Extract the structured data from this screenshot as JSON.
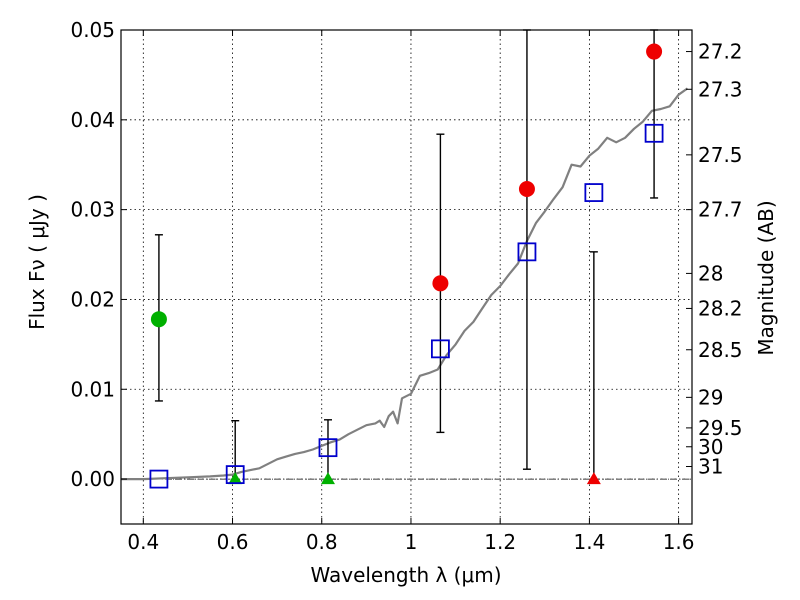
{
  "chart_data": {
    "type": "scatter",
    "xlabel": "Wavelength  λ (μm)",
    "ylabel": "Flux  Fν ( μJy )",
    "y2label": "Magnitude (AB)",
    "xlim": [
      0.35,
      1.63
    ],
    "ylim": [
      -0.005,
      0.05
    ],
    "grid": true,
    "x_ticks": [
      0.4,
      0.6,
      0.8,
      1.0,
      1.2,
      1.4,
      1.6
    ],
    "x_tick_labels": [
      "0.4",
      "0.6",
      "0.8",
      "1",
      "1.2",
      "1.4",
      "1.6"
    ],
    "y_ticks": [
      0.0,
      0.01,
      0.02,
      0.03,
      0.04,
      0.05
    ],
    "y_tick_labels": [
      "0.00",
      "0.01",
      "0.02",
      "0.03",
      "0.04",
      "0.05"
    ],
    "y2_tick_labels": [
      "27.2",
      "27.3",
      "27.5",
      "27.7",
      "28",
      "28.2",
      "28.5",
      "29",
      "29.5",
      "30",
      "31"
    ],
    "y2_tick_flux": [
      0.0476,
      0.0434,
      0.0361,
      0.03,
      0.0229,
      0.019,
      0.0144,
      0.0091,
      0.0057,
      0.0036,
      0.0014
    ],
    "colors": {
      "model": "#808080",
      "green": "#00b000",
      "red": "#ee0000",
      "blue": "#0000cc",
      "errorbar": "#000000"
    },
    "series": [
      {
        "kind": "model_sed",
        "x": [
          0.35,
          0.4,
          0.45,
          0.5,
          0.55,
          0.58,
          0.6,
          0.62,
          0.64,
          0.66,
          0.68,
          0.7,
          0.72,
          0.74,
          0.76,
          0.78,
          0.8,
          0.82,
          0.84,
          0.86,
          0.88,
          0.9,
          0.92,
          0.93,
          0.94,
          0.95,
          0.96,
          0.97,
          0.98,
          1.0,
          1.02,
          1.04,
          1.06,
          1.08,
          1.1,
          1.12,
          1.14,
          1.16,
          1.18,
          1.2,
          1.22,
          1.24,
          1.26,
          1.28,
          1.3,
          1.32,
          1.34,
          1.36,
          1.38,
          1.4,
          1.42,
          1.44,
          1.46,
          1.48,
          1.5,
          1.52,
          1.54,
          1.56,
          1.58,
          1.6,
          1.62
        ],
        "y": [
          0.0,
          0.0,
          0.0001,
          0.0002,
          0.0003,
          0.0004,
          0.0005,
          0.0008,
          0.001,
          0.0012,
          0.0017,
          0.0022,
          0.0025,
          0.0028,
          0.003,
          0.0033,
          0.0037,
          0.0041,
          0.0044,
          0.005,
          0.0055,
          0.006,
          0.0062,
          0.0065,
          0.0058,
          0.007,
          0.0075,
          0.0062,
          0.009,
          0.0095,
          0.0115,
          0.0118,
          0.0122,
          0.0138,
          0.015,
          0.0165,
          0.0175,
          0.019,
          0.0205,
          0.0215,
          0.0228,
          0.024,
          0.0265,
          0.0285,
          0.0298,
          0.0312,
          0.0325,
          0.035,
          0.0348,
          0.036,
          0.0368,
          0.038,
          0.0375,
          0.038,
          0.039,
          0.0398,
          0.041,
          0.0412,
          0.0415,
          0.0428,
          0.0435
        ]
      },
      {
        "kind": "measurement",
        "color": "green",
        "marker": "circle",
        "x": [
          0.435
        ],
        "y": [
          0.0178
        ],
        "yerr_low": [
          0.0087
        ],
        "yerr_high": [
          0.0272
        ]
      },
      {
        "kind": "upper_limit",
        "color": "green",
        "marker": "triangle",
        "x": [
          0.606,
          0.814
        ],
        "y": [
          0.0,
          0.0
        ],
        "yerr_low": [
          0.0,
          0.0
        ],
        "yerr_high": [
          0.0065,
          0.0066
        ]
      },
      {
        "kind": "measurement",
        "color": "red",
        "marker": "circle",
        "x": [
          1.066,
          1.26,
          1.545
        ],
        "y": [
          0.0218,
          0.0323,
          0.0476
        ],
        "yerr_low": [
          0.0052,
          0.0011,
          0.0313
        ],
        "yerr_high": [
          0.0384,
          0.05,
          0.05
        ]
      },
      {
        "kind": "upper_limit",
        "color": "red",
        "marker": "triangle",
        "x": [
          1.41
        ],
        "y": [
          0.0
        ],
        "yerr_low": [
          0.0
        ],
        "yerr_high": [
          0.0253
        ]
      },
      {
        "kind": "model_flux",
        "color": "blue",
        "marker": "square",
        "x": [
          0.435,
          0.606,
          0.814,
          1.066,
          1.26,
          1.41,
          1.545
        ],
        "y": [
          0.0,
          0.0005,
          0.0035,
          0.0145,
          0.0253,
          0.0319,
          0.0385
        ]
      }
    ]
  }
}
